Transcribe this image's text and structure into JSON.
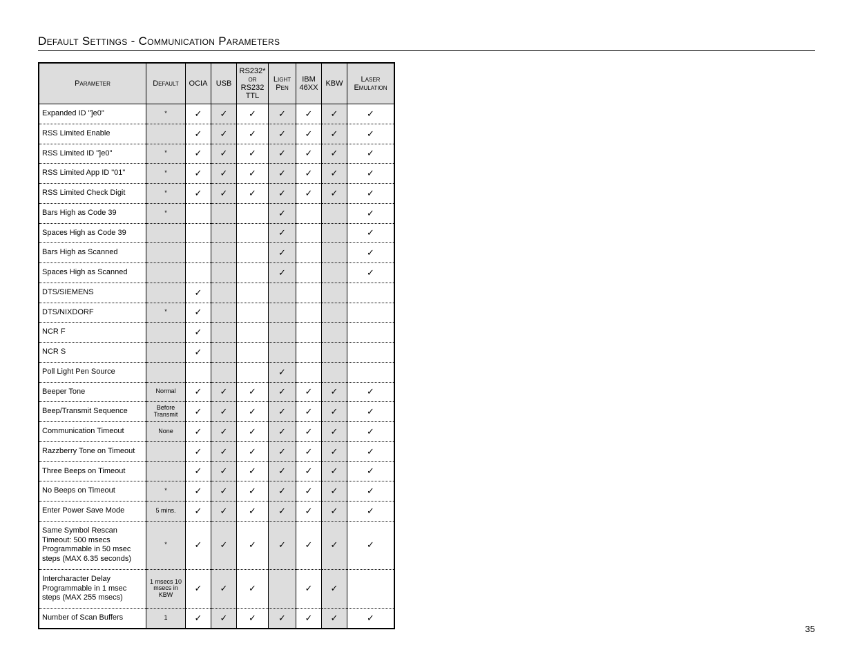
{
  "heading": "Default Settings - Communication Parameters",
  "page_number": "35",
  "columns": {
    "parameter": "Parameter",
    "default": "Default",
    "ocia": "OCIA",
    "usb": "USB",
    "rs232": "RS232*\nor\nRS232\nTTL",
    "lightpen": "Light Pen",
    "ibm": "IBM 46XX",
    "kbw": "KBW",
    "laser": "Laser Emulation"
  },
  "rows": [
    {
      "param": "Expanded ID \"]e0\"",
      "default": "*",
      "default_shaded": true,
      "ocia": "c",
      "usb": "c",
      "usb_s": true,
      "rs": "c",
      "lp": "c",
      "lp_s": true,
      "ibm": "c",
      "kbw": "c",
      "kbw_s": true,
      "laser": "c"
    },
    {
      "param": "RSS Limited Enable",
      "default": "",
      "default_shaded": true,
      "ocia": "c",
      "usb": "c",
      "usb_s": true,
      "rs": "c",
      "lp": "c",
      "lp_s": true,
      "ibm": "c",
      "kbw": "c",
      "kbw_s": true,
      "laser": "c"
    },
    {
      "param": "RSS Limited ID \"]e0\"",
      "default": "*",
      "default_shaded": true,
      "ocia": "c",
      "usb": "c",
      "usb_s": true,
      "rs": "c",
      "lp": "c",
      "lp_s": true,
      "ibm": "c",
      "kbw": "c",
      "kbw_s": true,
      "laser": "c"
    },
    {
      "param": "RSS Limited App ID \"01\"",
      "default": "*",
      "default_shaded": true,
      "ocia": "c",
      "usb": "c",
      "usb_s": true,
      "rs": "c",
      "lp": "c",
      "lp_s": true,
      "ibm": "c",
      "kbw": "c",
      "kbw_s": true,
      "laser": "c"
    },
    {
      "param": "RSS Limited Check Digit",
      "default": "*",
      "default_shaded": true,
      "ocia": "c",
      "usb": "c",
      "usb_s": true,
      "rs": "c",
      "lp": "c",
      "lp_s": true,
      "ibm": "c",
      "kbw": "c",
      "kbw_s": true,
      "laser": "c"
    },
    {
      "param": "Bars High as Code 39",
      "default": "*",
      "default_shaded": true,
      "ocia": "",
      "usb": "",
      "usb_s": true,
      "rs": "",
      "lp": "c",
      "lp_s": true,
      "ibm": "",
      "kbw": "",
      "kbw_s": true,
      "laser": "c"
    },
    {
      "param": "Spaces High as Code 39",
      "default": "",
      "default_shaded": true,
      "ocia": "",
      "usb": "",
      "usb_s": true,
      "rs": "",
      "lp": "c",
      "lp_s": true,
      "ibm": "",
      "kbw": "",
      "kbw_s": true,
      "laser": "c"
    },
    {
      "param": "Bars High as Scanned",
      "default": "",
      "default_shaded": true,
      "ocia": "",
      "usb": "",
      "usb_s": true,
      "rs": "",
      "lp": "c",
      "lp_s": true,
      "ibm": "",
      "kbw": "",
      "kbw_s": true,
      "laser": "c"
    },
    {
      "param": "Spaces High as Scanned",
      "default": "",
      "default_shaded": true,
      "ocia": "",
      "usb": "",
      "usb_s": true,
      "rs": "",
      "lp": "c",
      "lp_s": true,
      "ibm": "",
      "kbw": "",
      "kbw_s": true,
      "laser": "c"
    },
    {
      "param": "DTS/SIEMENS",
      "default": "",
      "default_shaded": true,
      "ocia": "c",
      "usb": "",
      "usb_s": true,
      "rs": "",
      "lp": "",
      "lp_s": true,
      "ibm": "",
      "kbw": "",
      "kbw_s": true,
      "laser": ""
    },
    {
      "param": "DTS/NIXDORF",
      "default": "*",
      "default_shaded": true,
      "ocia": "c",
      "usb": "",
      "usb_s": true,
      "rs": "",
      "lp": "",
      "lp_s": true,
      "ibm": "",
      "kbw": "",
      "kbw_s": true,
      "laser": ""
    },
    {
      "param": "NCR F",
      "default": "",
      "default_shaded": true,
      "ocia": "c",
      "usb": "",
      "usb_s": true,
      "rs": "",
      "lp": "",
      "lp_s": true,
      "ibm": "",
      "kbw": "",
      "kbw_s": true,
      "laser": ""
    },
    {
      "param": "NCR S",
      "default": "",
      "default_shaded": true,
      "ocia": "c",
      "usb": "",
      "usb_s": true,
      "rs": "",
      "lp": "",
      "lp_s": true,
      "ibm": "",
      "kbw": "",
      "kbw_s": true,
      "laser": ""
    },
    {
      "param": "Poll Light Pen Source",
      "default": "",
      "default_shaded": true,
      "ocia": "",
      "usb": "",
      "usb_s": true,
      "rs": "",
      "lp": "c",
      "lp_s": true,
      "ibm": "",
      "kbw": "",
      "kbw_s": true,
      "laser": ""
    },
    {
      "param": "Beeper Tone",
      "default": "Normal",
      "default_shaded": true,
      "ocia": "c",
      "usb": "c",
      "usb_s": true,
      "rs": "c",
      "lp": "c",
      "lp_s": true,
      "ibm": "c",
      "kbw": "c",
      "kbw_s": true,
      "laser": "c"
    },
    {
      "param": "Beep/Transmit Sequence",
      "default": "Before Transmit",
      "default_shaded": true,
      "ocia": "c",
      "usb": "c",
      "usb_s": true,
      "rs": "c",
      "lp": "c",
      "lp_s": true,
      "ibm": "c",
      "kbw": "c",
      "kbw_s": true,
      "laser": "c"
    },
    {
      "param": "Communication Timeout",
      "default": "None",
      "default_shaded": true,
      "ocia": "c",
      "usb": "c",
      "usb_s": true,
      "rs": "c",
      "lp": "c",
      "lp_s": true,
      "ibm": "c",
      "kbw": "c",
      "kbw_s": true,
      "laser": "c"
    },
    {
      "param": "Razzberry Tone on Timeout",
      "default": "",
      "default_shaded": true,
      "ocia": "c",
      "usb": "c",
      "usb_s": true,
      "rs": "c",
      "lp": "c",
      "lp_s": true,
      "ibm": "c",
      "kbw": "c",
      "kbw_s": true,
      "laser": "c"
    },
    {
      "param": "Three Beeps on Timeout",
      "default": "",
      "default_shaded": true,
      "ocia": "c",
      "usb": "c",
      "usb_s": true,
      "rs": "c",
      "lp": "c",
      "lp_s": true,
      "ibm": "c",
      "kbw": "c",
      "kbw_s": true,
      "laser": "c"
    },
    {
      "param": "No Beeps on Timeout",
      "default": "*",
      "default_shaded": true,
      "ocia": "c",
      "usb": "c",
      "usb_s": true,
      "rs": "c",
      "lp": "c",
      "lp_s": true,
      "ibm": "c",
      "kbw": "c",
      "kbw_s": true,
      "laser": "c"
    },
    {
      "param": "Enter Power Save Mode",
      "default": "5 mins.",
      "default_shaded": true,
      "ocia": "c",
      "usb": "c",
      "usb_s": true,
      "rs": "c",
      "lp": "c",
      "lp_s": true,
      "ibm": "c",
      "kbw": "c",
      "kbw_s": true,
      "laser": "c"
    },
    {
      "param": "Same Symbol Rescan Timeout: 500 msecs Programmable in 50 msec steps (MAX 6.35 seconds)",
      "default": "*",
      "default_shaded": true,
      "ocia": "c",
      "usb": "c",
      "usb_s": true,
      "rs": "c",
      "lp": "c",
      "lp_s": true,
      "ibm": "c",
      "kbw": "c",
      "kbw_s": true,
      "laser": "c"
    },
    {
      "param": "Intercharacter Delay Programmable in 1 msec steps (MAX 255 msecs)",
      "default": "1 msecs 10 msecs in KBW",
      "default_shaded": true,
      "ocia": "c",
      "usb": "c",
      "usb_s": true,
      "rs": "c",
      "lp": "",
      "lp_s": true,
      "ibm": "c",
      "kbw": "c",
      "kbw_s": true,
      "laser": ""
    },
    {
      "param": "Number of  Scan Buffers",
      "default": "1",
      "default_shaded": true,
      "ocia": "c",
      "usb": "c",
      "usb_s": true,
      "rs": "c",
      "lp": "c",
      "lp_s": true,
      "ibm": "c",
      "kbw": "c",
      "kbw_s": true,
      "laser": "c"
    }
  ],
  "colors": {
    "shade": "#dddddd",
    "background": "#ffffff"
  }
}
